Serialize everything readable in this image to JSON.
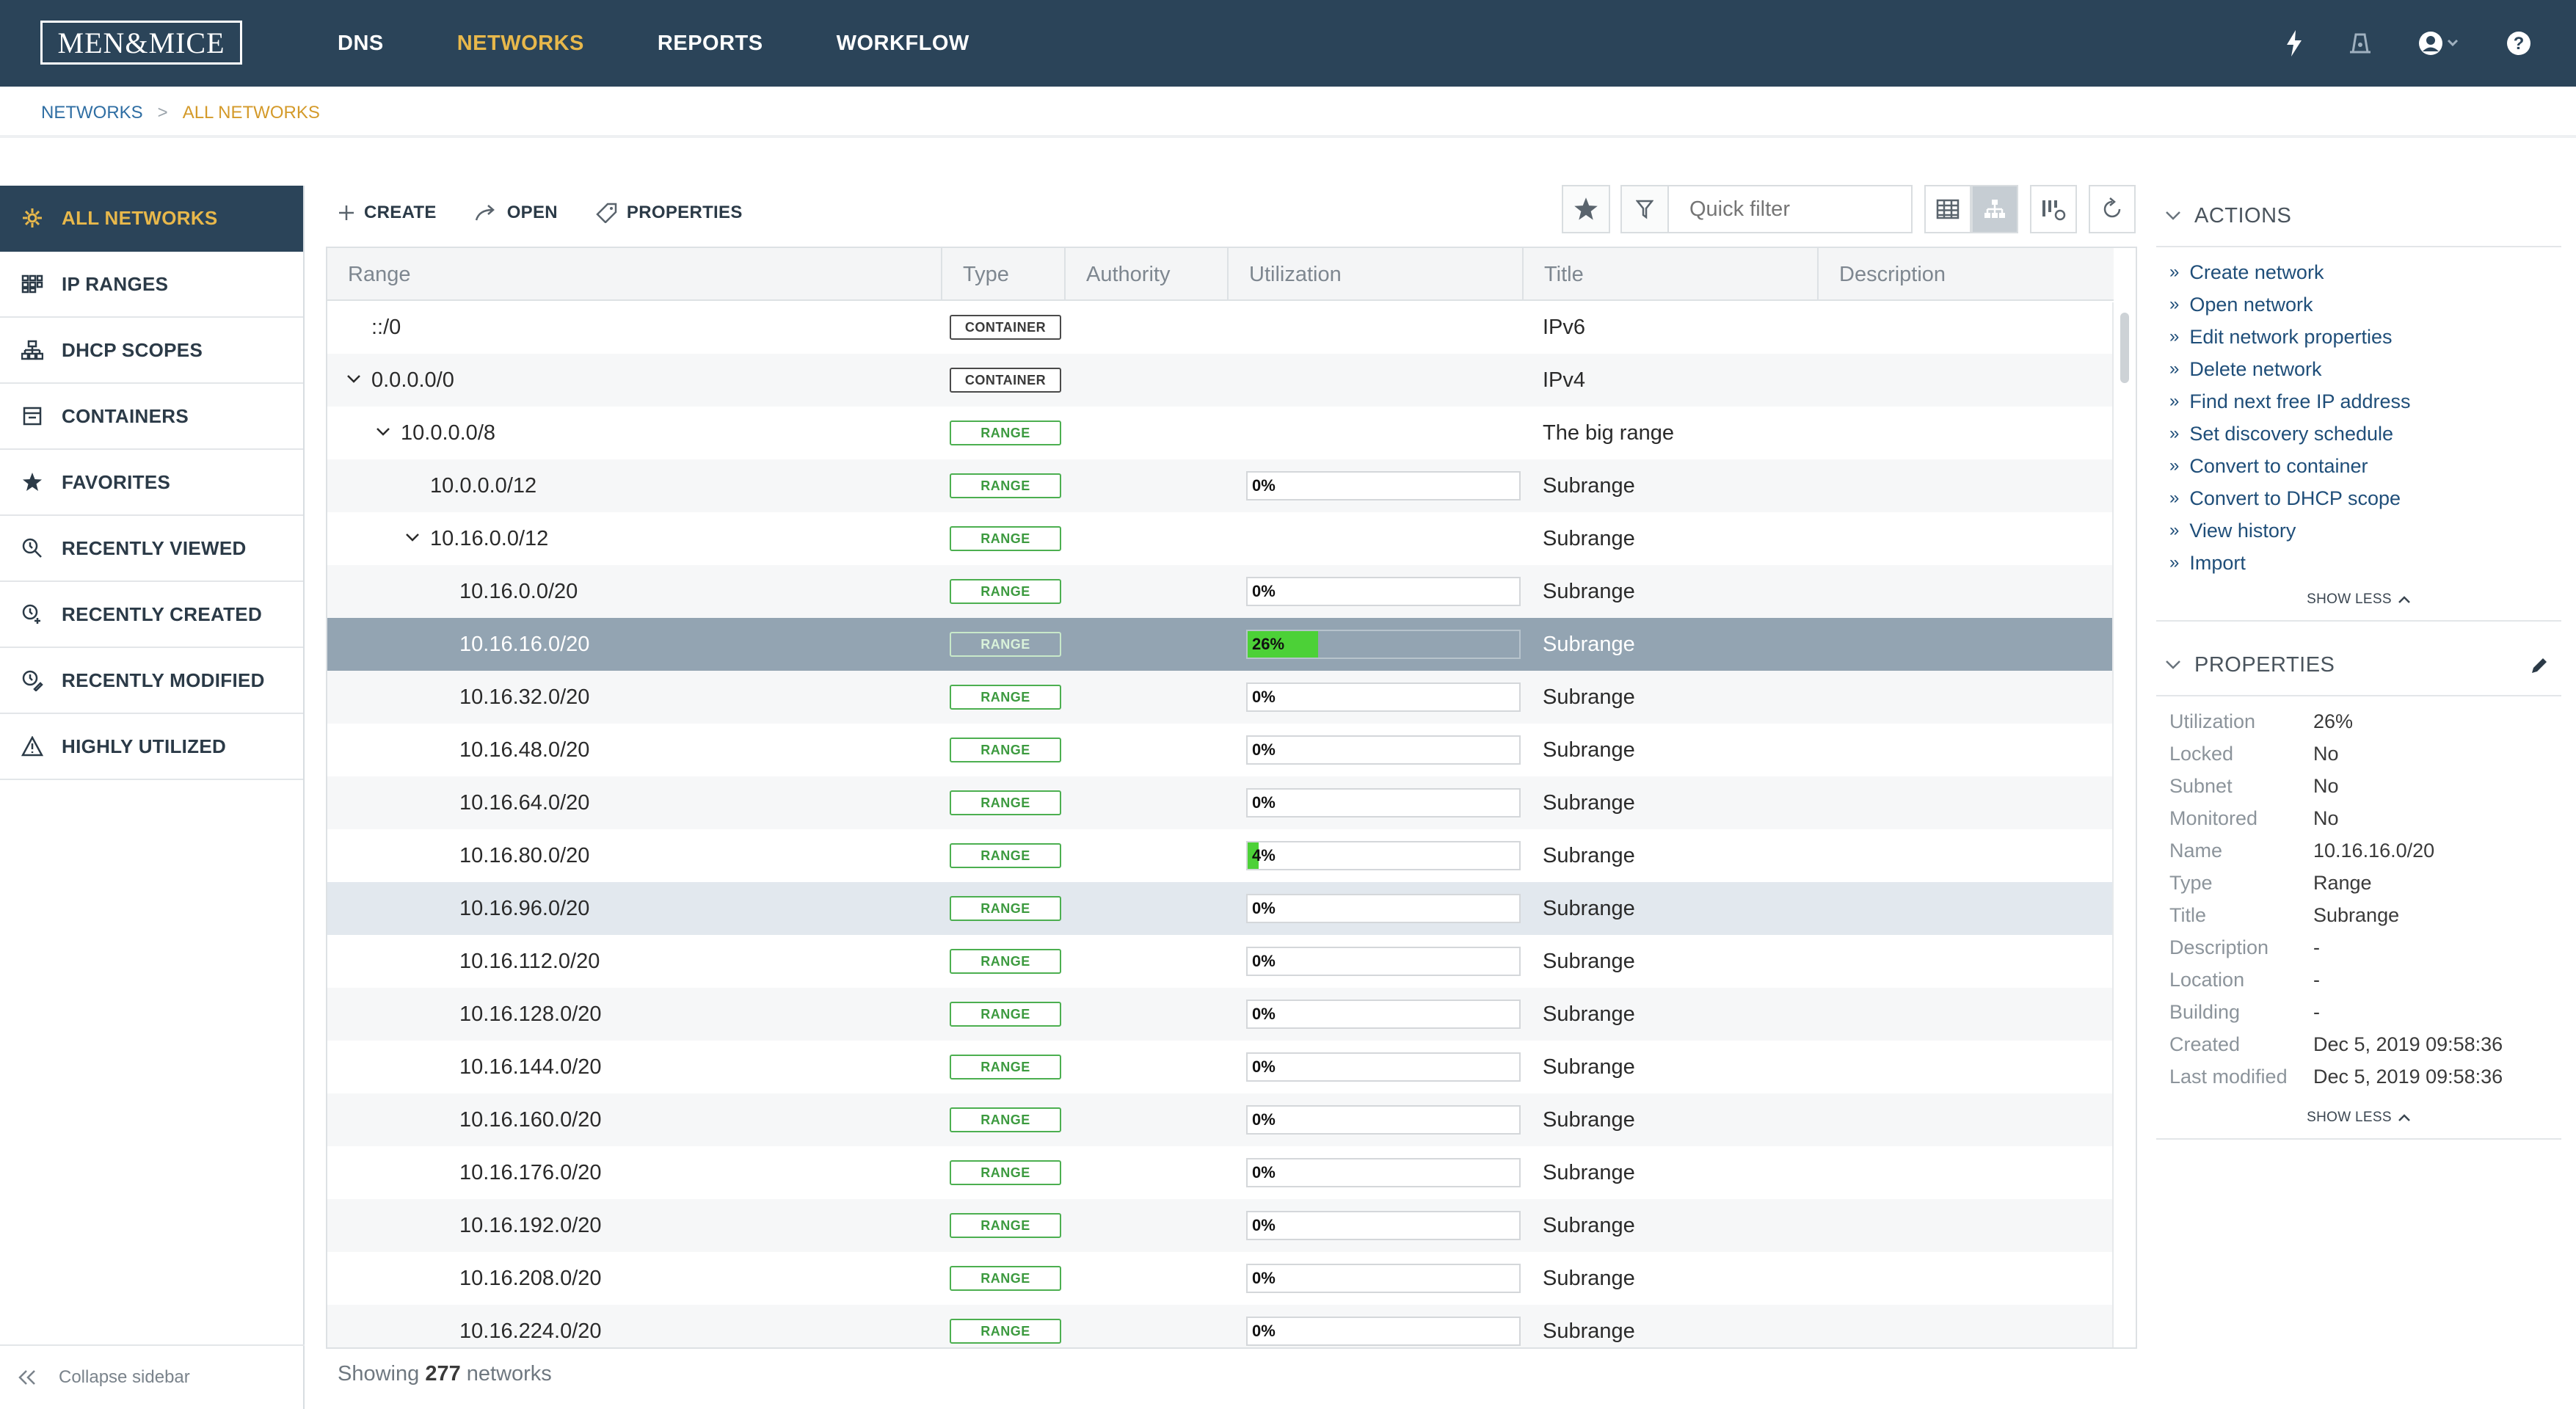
{
  "app": {
    "logo_text": "MEN&MICE",
    "nav": [
      "DNS",
      "NETWORKS",
      "REPORTS",
      "WORKFLOW"
    ],
    "active_nav": "NETWORKS",
    "accent_color": "#e8b84b",
    "header_color": "#2b4459"
  },
  "breadcrumb": {
    "root": "NETWORKS",
    "separator": ">",
    "current": "ALL NETWORKS"
  },
  "sidebar": {
    "items": [
      {
        "label": "ALL NETWORKS",
        "icon": "networks-icon",
        "active": true
      },
      {
        "label": "IP RANGES",
        "icon": "ip-ranges-icon"
      },
      {
        "label": "DHCP SCOPES",
        "icon": "dhcp-scopes-icon"
      },
      {
        "label": "CONTAINERS",
        "icon": "containers-icon"
      },
      {
        "label": "FAVORITES",
        "icon": "star-icon"
      },
      {
        "label": "RECENTLY VIEWED",
        "icon": "recently-viewed-icon"
      },
      {
        "label": "RECENTLY CREATED",
        "icon": "recently-created-icon"
      },
      {
        "label": "RECENTLY MODIFIED",
        "icon": "recently-modified-icon"
      },
      {
        "label": "HIGHLY UTILIZED",
        "icon": "warning-icon"
      }
    ],
    "collapse_label": "Collapse sidebar"
  },
  "toolbar": {
    "create": "CREATE",
    "open": "OPEN",
    "properties": "PROPERTIES",
    "quick_filter_placeholder": "Quick filter"
  },
  "grid": {
    "columns": [
      "Range",
      "Type",
      "Authority",
      "Utilization",
      "Title",
      "Description"
    ],
    "rows": [
      {
        "range": "::/0",
        "type": "CONTAINER",
        "util": null,
        "title": "IPv6",
        "level": 0,
        "expand": "none"
      },
      {
        "range": "0.0.0.0/0",
        "type": "CONTAINER",
        "util": null,
        "title": "IPv4",
        "level": 0,
        "expand": "open"
      },
      {
        "range": "10.0.0.0/8",
        "type": "RANGE",
        "util": null,
        "title": "The big range",
        "level": 1,
        "expand": "open"
      },
      {
        "range": "10.0.0.0/12",
        "type": "RANGE",
        "util": 0,
        "title": "Subrange",
        "level": 2,
        "expand": "none"
      },
      {
        "range": "10.16.0.0/12",
        "type": "RANGE",
        "util": null,
        "title": "Subrange",
        "level": 2,
        "expand": "open"
      },
      {
        "range": "10.16.0.0/20",
        "type": "RANGE",
        "util": 0,
        "title": "Subrange",
        "level": 3,
        "expand": "none"
      },
      {
        "range": "10.16.16.0/20",
        "type": "RANGE",
        "util": 26,
        "title": "Subrange",
        "level": 3,
        "expand": "none",
        "state": "selected"
      },
      {
        "range": "10.16.32.0/20",
        "type": "RANGE",
        "util": 0,
        "title": "Subrange",
        "level": 3,
        "expand": "none"
      },
      {
        "range": "10.16.48.0/20",
        "type": "RANGE",
        "util": 0,
        "title": "Subrange",
        "level": 3,
        "expand": "none"
      },
      {
        "range": "10.16.64.0/20",
        "type": "RANGE",
        "util": 0,
        "title": "Subrange",
        "level": 3,
        "expand": "none"
      },
      {
        "range": "10.16.80.0/20",
        "type": "RANGE",
        "util": 4,
        "title": "Subrange",
        "level": 3,
        "expand": "none"
      },
      {
        "range": "10.16.96.0/20",
        "type": "RANGE",
        "util": 0,
        "title": "Subrange",
        "level": 3,
        "expand": "none",
        "state": "hover"
      },
      {
        "range": "10.16.112.0/20",
        "type": "RANGE",
        "util": 0,
        "title": "Subrange",
        "level": 3,
        "expand": "none"
      },
      {
        "range": "10.16.128.0/20",
        "type": "RANGE",
        "util": 0,
        "title": "Subrange",
        "level": 3,
        "expand": "none"
      },
      {
        "range": "10.16.144.0/20",
        "type": "RANGE",
        "util": 0,
        "title": "Subrange",
        "level": 3,
        "expand": "none"
      },
      {
        "range": "10.16.160.0/20",
        "type": "RANGE",
        "util": 0,
        "title": "Subrange",
        "level": 3,
        "expand": "none"
      },
      {
        "range": "10.16.176.0/20",
        "type": "RANGE",
        "util": 0,
        "title": "Subrange",
        "level": 3,
        "expand": "none"
      },
      {
        "range": "10.16.192.0/20",
        "type": "RANGE",
        "util": 0,
        "title": "Subrange",
        "level": 3,
        "expand": "none"
      },
      {
        "range": "10.16.208.0/20",
        "type": "RANGE",
        "util": 0,
        "title": "Subrange",
        "level": 3,
        "expand": "none"
      },
      {
        "range": "10.16.224.0/20",
        "type": "RANGE",
        "util": 0,
        "title": "Subrange",
        "level": 3,
        "expand": "none"
      }
    ]
  },
  "footer": {
    "showing_prefix": "Showing",
    "count": "277",
    "suffix": "networks"
  },
  "actions_panel": {
    "title": "ACTIONS",
    "items": [
      "Create network",
      "Open network",
      "Edit network properties",
      "Delete network",
      "Find next free IP address",
      "Set discovery schedule",
      "Convert to container",
      "Convert to DHCP scope",
      "View history",
      "Import"
    ],
    "show_less": "SHOW LESS"
  },
  "properties_panel": {
    "title": "PROPERTIES",
    "items": [
      {
        "key": "Utilization",
        "value": "26%"
      },
      {
        "key": "Locked",
        "value": "No"
      },
      {
        "key": "Subnet",
        "value": "No"
      },
      {
        "key": "Monitored",
        "value": "No"
      },
      {
        "key": "Name",
        "value": "10.16.16.0/20"
      },
      {
        "key": "Type",
        "value": "Range"
      },
      {
        "key": "Title",
        "value": "Subrange"
      },
      {
        "key": "Description",
        "value": "-"
      },
      {
        "key": "Location",
        "value": "-"
      },
      {
        "key": "Building",
        "value": "-"
      },
      {
        "key": "Created",
        "value": "Dec 5, 2019 09:58:36"
      },
      {
        "key": "Last modified",
        "value": "Dec 5, 2019 09:58:36"
      }
    ],
    "show_less": "SHOW LESS"
  }
}
